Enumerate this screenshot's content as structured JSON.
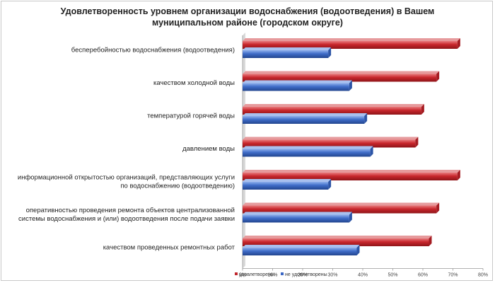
{
  "chart_data": {
    "type": "bar",
    "orientation": "horizontal",
    "title_line1": "Удовлетворенность уровнем организации водоснабжения (водоотведения) в Вашем",
    "title_line2": "муниципальном районе (городском округе)",
    "categories": [
      [
        "бесперебойностью водоснабжения (водоотведения)"
      ],
      [
        "качеством холодной воды"
      ],
      [
        "температурой горячей воды"
      ],
      [
        "давлением воды"
      ],
      [
        "информационной открытостью организаций, представляющих услуги",
        "по водоснабжению (водоотведению)"
      ],
      [
        "оперативностью проведения ремонта объектов централизованной",
        "системы водоснабжения и (или) водоотведения после подачи заявки"
      ],
      [
        "качеством проведенных ремонтных работ"
      ]
    ],
    "series": [
      {
        "name": "удовлетворены",
        "color": "#c0272d",
        "values": [
          71.5,
          64.5,
          59.5,
          57.5,
          71.5,
          64.5,
          62
        ]
      },
      {
        "name": "не удовлетворены",
        "color": "#3a66c4",
        "values": [
          28.5,
          35.5,
          40.5,
          42.5,
          28.5,
          35.5,
          38
        ]
      }
    ],
    "xlim": [
      0,
      80
    ],
    "xticks": [
      "0%",
      "10%",
      "20%",
      "30%",
      "40%",
      "50%",
      "60%",
      "70%",
      "80%"
    ],
    "grid": false,
    "legend_position": "bottom"
  }
}
